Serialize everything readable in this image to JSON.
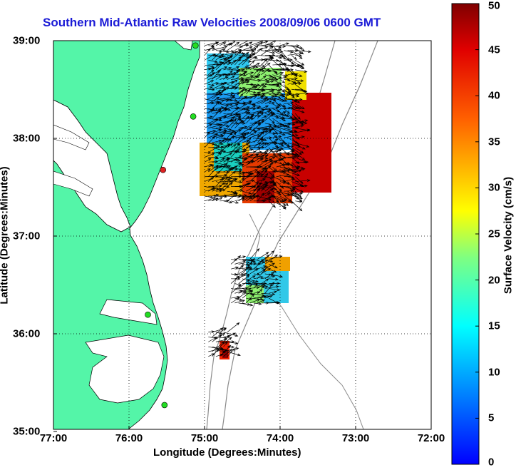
{
  "title": "Southern Mid-Atlantic Raw Velocities 2008/09/06 0600 GMT",
  "xlabel": "Longitude (Degrees:Minutes)",
  "ylabel": "Latitude (Degrees:Minutes)",
  "colorbar": {
    "label": "Surface Velocity (cm/s)",
    "min": 0,
    "max": 50,
    "ticks": [
      "0",
      "5",
      "10",
      "15",
      "20",
      "25",
      "30",
      "35",
      "40",
      "45",
      "50"
    ]
  },
  "x_ticks": [
    "77:00",
    "76:00",
    "75:00",
    "74:00",
    "73:00",
    "72:00"
  ],
  "y_ticks": [
    "39:00",
    "38:00",
    "37:00",
    "36:00",
    "35:00"
  ],
  "chart_data": {
    "type": "heatmap",
    "title": "Southern Mid-Atlantic Raw Velocities 2008/09/06 0600 GMT",
    "xlabel": "Longitude (Degrees:Minutes)",
    "ylabel": "Latitude (Degrees:Minutes)",
    "xlim": [
      -77,
      -72
    ],
    "ylim": [
      35,
      39
    ],
    "grid": true,
    "colorbar_range": [
      0,
      50
    ],
    "colors": {
      "land": "#54f5a8",
      "coast": "#000000",
      "bathymetry": "#8a8a8a",
      "grid": "#000000"
    },
    "stations": [
      {
        "lon": -75.12,
        "lat": 38.95,
        "status": "on"
      },
      {
        "lon": -75.15,
        "lat": 38.22,
        "status": "on"
      },
      {
        "lon": -75.55,
        "lat": 37.67,
        "status": "off"
      },
      {
        "lon": -75.75,
        "lat": 36.18,
        "status": "on"
      },
      {
        "lon": -75.53,
        "lat": 35.25,
        "status": "on"
      }
    ],
    "regions": [
      {
        "name": "north",
        "lon_range": [
          -75.0,
          -73.8
        ],
        "lat_range": [
          37.35,
          38.95
        ],
        "speed_range": [
          5,
          50
        ]
      },
      {
        "name": "middle",
        "lon_range": [
          -74.65,
          -74.15
        ],
        "lat_range": [
          36.3,
          36.75
        ],
        "speed_range": [
          10,
          35
        ]
      },
      {
        "name": "south",
        "lon_range": [
          -74.95,
          -74.7
        ],
        "lat_range": [
          35.75,
          36.0
        ],
        "speed_range": [
          35,
          50
        ]
      }
    ]
  }
}
